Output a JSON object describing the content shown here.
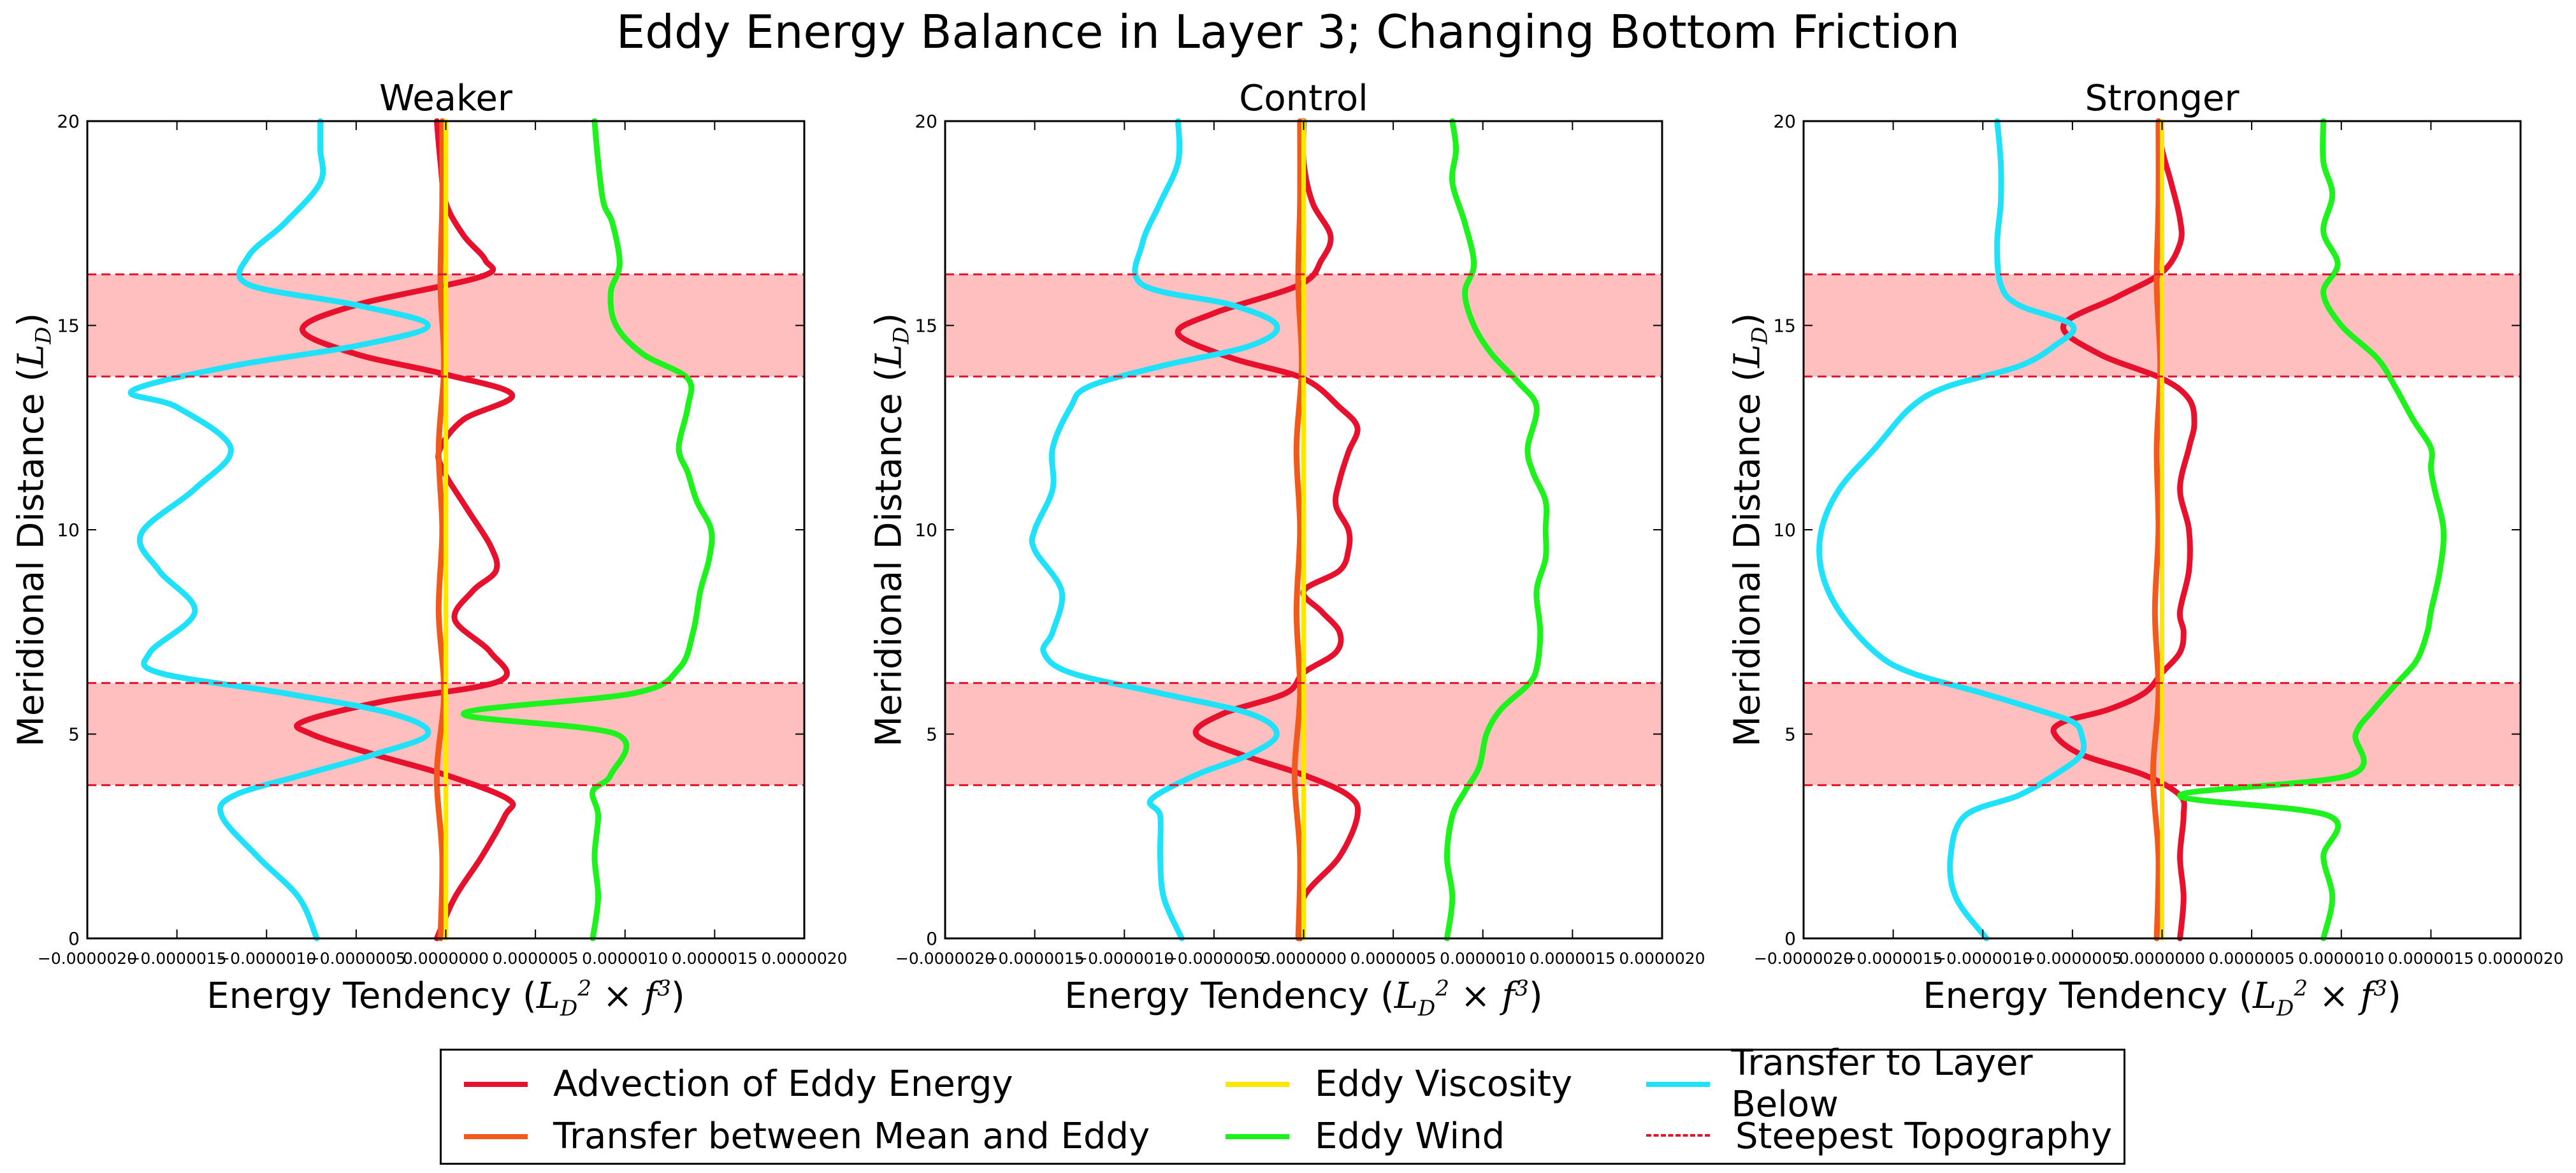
{
  "figure": {
    "title": "Eddy Energy Balance in Layer 3; Changing Bottom Friction",
    "xlabel_prefix": "Energy Tendency (",
    "xlabel_math": "L_D^2 × f^3",
    "ylabel_prefix": "Meridional Distance (",
    "ylabel_math": "L_D"
  },
  "legend": {
    "items": [
      {
        "label": "Advection of Eddy Energy",
        "color": "#e8112d",
        "style": "solid"
      },
      {
        "label": "Transfer between Mean and Eddy",
        "color": "#f15a1b",
        "style": "solid"
      },
      {
        "label": "Eddy Viscosity",
        "color": "#ffe600",
        "style": "solid"
      },
      {
        "label": "Eddy Wind",
        "color": "#1df21d",
        "style": "solid"
      },
      {
        "label": "Transfer to Layer Below",
        "color": "#1fe2fa",
        "style": "solid"
      },
      {
        "label": "Steepest Topography",
        "color": "#e8112d",
        "style": "dashed"
      }
    ]
  },
  "chart_data": [
    {
      "type": "line",
      "title": "Weaker",
      "xlim": [
        -2e-06,
        2e-06
      ],
      "ylim": [
        0,
        20
      ],
      "xticks": [
        "−0.0000020",
        "−0.0000015",
        "−0.0000010",
        "−0.0000005",
        "0.0000000",
        "0.0000005",
        "0.0000010",
        "0.0000015",
        "0.0000020"
      ],
      "yticks": [
        "0",
        "5",
        "10",
        "15",
        "20"
      ],
      "shaded_bands": [
        [
          3.75,
          6.25
        ],
        [
          13.75,
          16.25
        ]
      ],
      "series": [
        {
          "name": "Advection of Eddy Energy",
          "y": [
            0,
            1,
            2,
            3,
            3.4,
            4,
            4.5,
            5,
            5.3,
            5.8,
            6.3,
            7,
            7.8,
            8.5,
            9,
            9.6,
            10.5,
            11.5,
            12,
            12.7,
            13.3,
            13.8,
            14.3,
            14.9,
            15.5,
            16.2,
            16.6,
            17.2,
            18,
            19,
            20
          ],
          "x": [
            -5e-08,
            5e-08,
            2e-07,
            3.3e-07,
            3.5e-07,
            0.0,
            -4e-07,
            -7.5e-07,
            -8e-07,
            -3.5e-07,
            3e-07,
            2.5e-07,
            5e-08,
            1.5e-07,
            2.8e-07,
            2.5e-07,
            1.2e-07,
            -2e-08,
            -3e-08,
            1e-07,
            3.7e-07,
            0.0,
            -5e-07,
            -8e-07,
            -5e-07,
            2e-07,
            2.2e-07,
            1e-07,
            0.0,
            -3e-08,
            -5e-08
          ]
        },
        {
          "name": "Transfer between Mean and Eddy",
          "y": [
            0,
            2,
            4,
            6,
            8,
            10,
            12,
            14,
            16,
            18,
            20
          ],
          "x": [
            -3e-08,
            -2e-08,
            -5e-08,
            -1e-08,
            -4e-08,
            -2e-08,
            -4e-08,
            -1e-08,
            -3e-08,
            -2e-08,
            -2e-08
          ]
        },
        {
          "name": "Eddy Viscosity",
          "y": [
            0,
            5,
            10,
            15,
            20
          ],
          "x": [
            0.0,
            0.0,
            0.0,
            0.0,
            0.0
          ]
        },
        {
          "name": "Eddy Wind",
          "y": [
            0,
            1,
            2,
            3,
            3.6,
            4,
            5,
            5.5,
            6,
            6.6,
            7.5,
            8.5,
            9.3,
            10,
            10.7,
            11.4,
            12,
            13,
            13.7,
            14.3,
            15,
            15.8,
            16.5,
            17.5,
            18,
            19,
            20
          ],
          "x": [
            8.2e-07,
            8.5e-07,
            8.3e-07,
            8.5e-07,
            8.2e-07,
            9.2e-07,
            9.5e-07,
            1e-07,
            1.05e-06,
            1.3e-06,
            1.38e-06,
            1.42e-06,
            1.47e-06,
            1.48e-06,
            1.4e-06,
            1.35e-06,
            1.3e-06,
            1.35e-06,
            1.35e-06,
            1.1e-06,
            9.5e-07,
            9.2e-07,
            9.7e-07,
            9.3e-07,
            8.8e-07,
            8.5e-07,
            8.3e-07
          ]
        },
        {
          "name": "Transfer to Layer Below",
          "y": [
            0,
            1,
            2,
            3,
            3.5,
            4,
            4.5,
            5,
            5.5,
            6,
            6.5,
            7,
            8,
            9,
            9.9,
            11,
            12,
            13,
            13.4,
            14,
            14.5,
            15,
            15.5,
            16,
            16.7,
            17.5,
            18.5,
            19.3,
            20
          ],
          "x": [
            -7.2e-07,
            -8.2e-07,
            -1.05e-06,
            -1.25e-06,
            -1.18e-06,
            -8e-07,
            -4e-07,
            -1e-07,
            -3e-07,
            -9e-07,
            -1.6e-06,
            -1.65e-06,
            -1.4e-06,
            -1.6e-06,
            -1.7e-06,
            -1.4e-06,
            -1.2e-06,
            -1.5e-06,
            -1.75e-06,
            -1.2e-06,
            -5e-07,
            -1e-07,
            -5e-07,
            -1.1e-06,
            -1.1e-06,
            -9e-07,
            -7e-07,
            -7e-07,
            -7e-07
          ]
        },
        {
          "name": "Steepest Topography",
          "y_lines": [
            3.75,
            6.25,
            13.75,
            16.25
          ]
        }
      ]
    },
    {
      "type": "line",
      "title": "Control",
      "xlim": [
        -2e-06,
        2e-06
      ],
      "ylim": [
        0,
        20
      ],
      "xticks": [
        "−0.0000020",
        "−0.0000015",
        "−0.0000010",
        "−0.0000005",
        "0.0000000",
        "0.0000005",
        "0.0000010",
        "0.0000015",
        "0.0000020"
      ],
      "yticks": [
        "0",
        "5",
        "10",
        "15",
        "20"
      ],
      "shaded_bands": [
        [
          3.75,
          6.25
        ],
        [
          13.75,
          16.25
        ]
      ],
      "series": [
        {
          "name": "Advection of Eddy Energy",
          "y": [
            0,
            1,
            2,
            3,
            3.5,
            4,
            4.5,
            5,
            5.5,
            6,
            6.5,
            7,
            7.5,
            8,
            8.5,
            9,
            9.5,
            10,
            10.6,
            11.2,
            11.9,
            12.5,
            13,
            13.7,
            14.2,
            14.8,
            15.3,
            16,
            16.6,
            17.2,
            18,
            19,
            20
          ],
          "x": [
            -2e-08,
            0.0,
            2e-07,
            3e-07,
            2.5e-07,
            0.0,
            -3.5e-07,
            -6e-07,
            -4.5e-07,
            -1e-07,
            0.0,
            1.8e-07,
            2e-07,
            1e-07,
            0.0,
            2e-07,
            2.5e-07,
            2.5e-07,
            1.8e-07,
            2e-07,
            2.5e-07,
            3e-07,
            2e-07,
            0.0,
            -4e-07,
            -7e-07,
            -5e-07,
            -2e-08,
            1e-07,
            1.5e-07,
            5e-08,
            0.0,
            0.0
          ]
        },
        {
          "name": "Transfer between Mean and Eddy",
          "y": [
            0,
            2,
            4,
            6,
            8,
            10,
            12,
            14,
            16,
            18,
            20
          ],
          "x": [
            -3e-08,
            -2e-08,
            -5e-08,
            -2e-08,
            -4e-08,
            -2e-08,
            -4e-08,
            -1e-08,
            -3e-08,
            -2e-08,
            -2e-08
          ]
        },
        {
          "name": "Eddy Viscosity",
          "y": [
            0,
            5,
            10,
            15,
            20
          ],
          "x": [
            0.0,
            0.0,
            0.0,
            0.0,
            0.0
          ]
        },
        {
          "name": "Eddy Wind",
          "y": [
            0,
            1,
            2,
            3,
            3.6,
            4.2,
            5,
            5.6,
            6.2,
            6.6,
            7.5,
            8.5,
            9.3,
            10,
            10.7,
            11.4,
            12,
            13,
            13.6,
            14.3,
            15,
            15.8,
            16.5,
            17.5,
            18.5,
            19.3,
            20
          ],
          "x": [
            8e-07,
            8.3e-07,
            8e-07,
            8.3e-07,
            9e-07,
            9.8e-07,
            1.02e-06,
            1.1e-06,
            1.25e-06,
            1.3e-06,
            1.32e-06,
            1.3e-06,
            1.35e-06,
            1.35e-06,
            1.35e-06,
            1.28e-06,
            1.25e-06,
            1.3e-06,
            1.2e-06,
            1.05e-06,
            9.5e-07,
            9e-07,
            9.5e-07,
            9e-07,
            8.3e-07,
            8.5e-07,
            8.3e-07
          ]
        },
        {
          "name": "Transfer to Layer Below",
          "y": [
            0,
            1,
            2,
            3,
            3.4,
            4,
            4.5,
            5,
            5.5,
            6,
            6.5,
            7,
            7.5,
            8.5,
            9.5,
            10,
            11,
            12,
            13,
            13.5,
            14,
            14.5,
            15,
            15.5,
            16,
            17,
            18,
            19,
            20
          ],
          "x": [
            -6.8e-07,
            -7.8e-07,
            -8e-07,
            -8e-07,
            -8.5e-07,
            -6e-07,
            -3e-07,
            -1.5e-07,
            -3e-07,
            -8e-07,
            -1.3e-06,
            -1.45e-06,
            -1.4e-06,
            -1.35e-06,
            -1.5e-06,
            -1.5e-06,
            -1.4e-06,
            -1.4e-06,
            -1.3e-06,
            -1.2e-06,
            -8e-07,
            -3e-07,
            -1.5e-07,
            -4e-07,
            -9e-07,
            -9e-07,
            -8e-07,
            -7e-07,
            -7e-07
          ]
        },
        {
          "name": "Steepest Topography",
          "y_lines": [
            3.75,
            6.25,
            13.75,
            16.25
          ]
        }
      ]
    },
    {
      "type": "line",
      "title": "Stronger",
      "xlim": [
        -2e-06,
        2e-06
      ],
      "ylim": [
        0,
        20
      ],
      "xticks": [
        "−0.0000020",
        "−0.0000015",
        "−0.0000010",
        "−0.0000005",
        "0.0000000",
        "0.0000005",
        "0.0000010",
        "0.0000015",
        "0.0000020"
      ],
      "yticks": [
        "0",
        "5",
        "10",
        "15",
        "20"
      ],
      "shaded_bands": [
        [
          3.75,
          6.25
        ],
        [
          13.75,
          16.25
        ]
      ],
      "series": [
        {
          "name": "Advection of Eddy Energy",
          "y": [
            0,
            1,
            2,
            3,
            3.5,
            4,
            4.5,
            5,
            5.3,
            5.6,
            6,
            6.5,
            7,
            7.5,
            8,
            9,
            10,
            11,
            12,
            12.6,
            13.2,
            13.7,
            14.3,
            15,
            15.7,
            16.3,
            17,
            17.6,
            18.5,
            19.3,
            20
          ],
          "x": [
            1e-07,
            1.2e-07,
            1e-07,
            1.2e-07,
            1e-07,
            -1e-07,
            -4.5e-07,
            -6e-07,
            -5.5e-07,
            -3e-07,
            -1e-07,
            0.0,
            1e-07,
            1.2e-07,
            1e-07,
            1.5e-07,
            1.5e-07,
            1e-07,
            1.5e-07,
            1.8e-07,
            1.5e-07,
            0.0,
            -3.5e-07,
            -5.5e-07,
            -2.5e-07,
            0.0,
            1e-07,
            1e-07,
            5e-08,
            0.0,
            -2e-08
          ]
        },
        {
          "name": "Transfer between Mean and Eddy",
          "y": [
            0,
            2,
            4,
            6,
            8,
            10,
            12,
            14,
            16,
            18,
            20
          ],
          "x": [
            -3e-08,
            -2e-08,
            -5e-08,
            -2e-08,
            -4e-08,
            -2e-08,
            -3e-08,
            -1e-08,
            -3e-08,
            -2e-08,
            -2e-08
          ]
        },
        {
          "name": "Eddy Viscosity",
          "y": [
            0,
            5,
            10,
            15,
            20
          ],
          "x": [
            0.0,
            0.0,
            0.0,
            0.0,
            0.0
          ]
        },
        {
          "name": "Eddy Wind",
          "y": [
            0,
            1,
            2,
            3,
            3.5,
            4,
            5,
            5.6,
            6.2,
            6.8,
            7.5,
            8,
            9,
            10,
            11,
            11.5,
            12,
            12.7,
            13.5,
            14.2,
            15,
            15.8,
            16.5,
            17.3,
            18.2,
            19,
            20
          ],
          "x": [
            9e-07,
            9.5e-07,
            9e-07,
            9.3e-07,
            1e-07,
            1.05e-06,
            1.08e-06,
            1.18e-06,
            1.3e-06,
            1.42e-06,
            1.48e-06,
            1.5e-06,
            1.55e-06,
            1.57e-06,
            1.52e-06,
            1.5e-06,
            1.5e-06,
            1.4e-06,
            1.3e-06,
            1.2e-06,
            1e-06,
            9e-07,
            9.8e-07,
            9e-07,
            9.5e-07,
            9e-07,
            9e-07
          ]
        },
        {
          "name": "Transfer to Layer Below",
          "y": [
            0,
            1,
            2,
            3,
            3.5,
            4,
            4.5,
            5,
            5.3,
            5.6,
            6,
            6.5,
            7,
            8,
            9,
            10,
            11,
            12,
            13,
            13.5,
            14,
            14.5,
            15,
            15.5,
            16,
            17,
            18,
            19,
            20
          ],
          "x": [
            -9.8e-07,
            -1.15e-06,
            -1.18e-06,
            -1.1e-06,
            -8e-07,
            -6e-07,
            -4.5e-07,
            -4.5e-07,
            -5e-07,
            -7e-07,
            -1e-06,
            -1.4e-06,
            -1.6e-06,
            -1.8e-06,
            -1.9e-06,
            -1.9e-06,
            -1.8e-06,
            -1.6e-06,
            -1.4e-06,
            -1.2e-06,
            -8e-07,
            -6e-07,
            -5e-07,
            -8e-07,
            -9e-07,
            -9.2e-07,
            -9e-07,
            -9e-07,
            -9.2e-07
          ]
        },
        {
          "name": "Steepest Topography",
          "y_lines": [
            3.75,
            6.25,
            13.75,
            16.25
          ]
        }
      ]
    }
  ]
}
